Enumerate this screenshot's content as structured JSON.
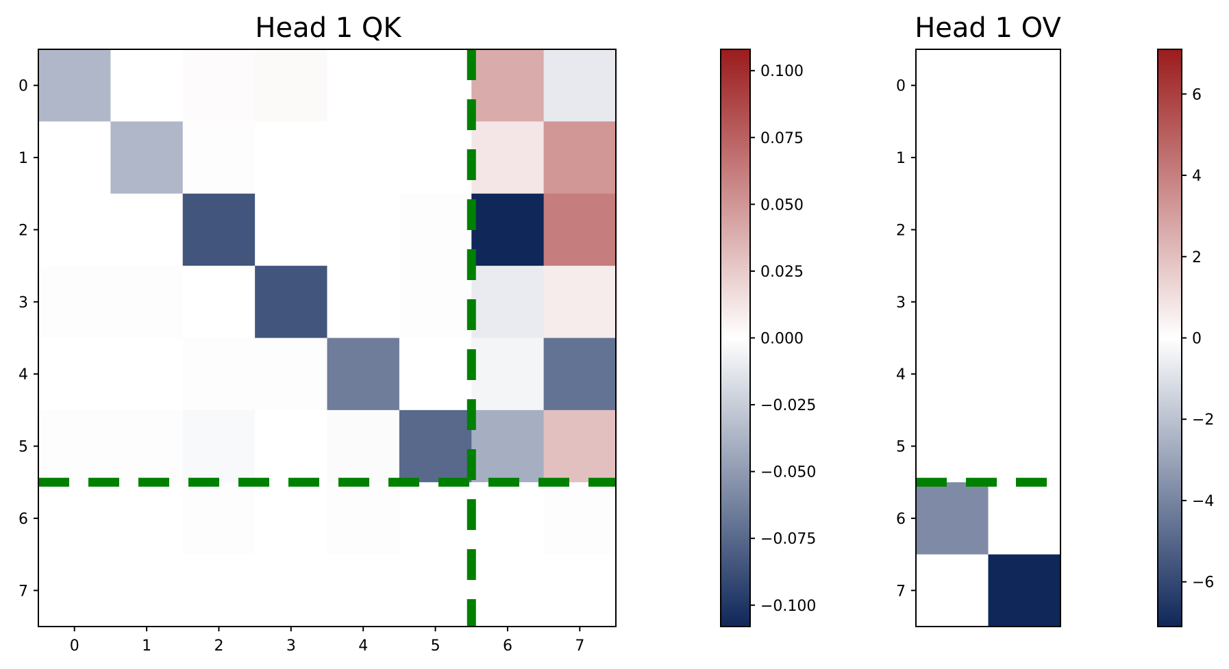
{
  "colors": {
    "neg": "#0f2759",
    "mid": "#ffffff",
    "pos": "#9b1c1c",
    "divider": "#008000",
    "frame": "#000000"
  },
  "chart_data": [
    {
      "type": "heatmap",
      "title": "Head 1 QK",
      "x_categories": [
        "0",
        "1",
        "2",
        "3",
        "4",
        "5",
        "6",
        "7"
      ],
      "y_categories": [
        "0",
        "1",
        "2",
        "3",
        "4",
        "5",
        "6",
        "7"
      ],
      "values": [
        [
          -0.036,
          0.0,
          0.002,
          0.003,
          0.0,
          0.0,
          0.04,
          -0.011
        ],
        [
          0.0,
          -0.036,
          0.001,
          0.0,
          0.0,
          0.0,
          0.012,
          0.05
        ],
        [
          0.0,
          0.0,
          -0.085,
          0.0,
          0.0,
          -0.001,
          -0.108,
          0.062
        ],
        [
          -0.001,
          -0.001,
          0.0,
          -0.085,
          0.0,
          0.001,
          -0.01,
          0.009
        ],
        [
          0.0,
          0.0,
          -0.001,
          0.001,
          -0.065,
          0.0,
          -0.005,
          -0.07
        ],
        [
          0.001,
          -0.001,
          -0.003,
          0.0,
          -0.002,
          -0.075,
          -0.04,
          0.03
        ],
        [
          0.0,
          0.0,
          -0.001,
          0.0,
          -0.001,
          0.0,
          0.0,
          -0.001
        ],
        [
          0.0,
          0.0,
          0.0,
          0.0,
          0.0,
          0.0,
          0.0,
          0.0
        ]
      ],
      "vline_x": 5.5,
      "hline_y": 5.5,
      "colorbar": {
        "range": [
          -0.108,
          0.108
        ],
        "ticks": [
          0.1,
          0.075,
          0.05,
          0.025,
          0.0,
          -0.025,
          -0.05,
          -0.075,
          -0.1
        ],
        "tick_labels": [
          "0.100",
          "0.075",
          "0.050",
          "0.025",
          "0.000",
          "−0.025",
          "−0.050",
          "−0.075",
          "−0.100"
        ]
      }
    },
    {
      "type": "heatmap",
      "title": "Head 1 OV",
      "x_categories": [],
      "y_categories": [
        "0",
        "1",
        "2",
        "3",
        "4",
        "5",
        "6",
        "7"
      ],
      "values": [
        [
          0,
          0
        ],
        [
          0,
          0
        ],
        [
          0,
          0
        ],
        [
          0,
          0
        ],
        [
          0,
          0
        ],
        [
          0,
          0
        ],
        [
          -3.8,
          0
        ],
        [
          0,
          -7.1
        ]
      ],
      "hline_y": 5.5,
      "colorbar": {
        "range": [
          -7.1,
          7.1
        ],
        "ticks": [
          6,
          4,
          2,
          0,
          -2,
          -4,
          -6
        ],
        "tick_labels": [
          "6",
          "4",
          "2",
          "0",
          "−2",
          "−4",
          "−6"
        ]
      }
    }
  ]
}
